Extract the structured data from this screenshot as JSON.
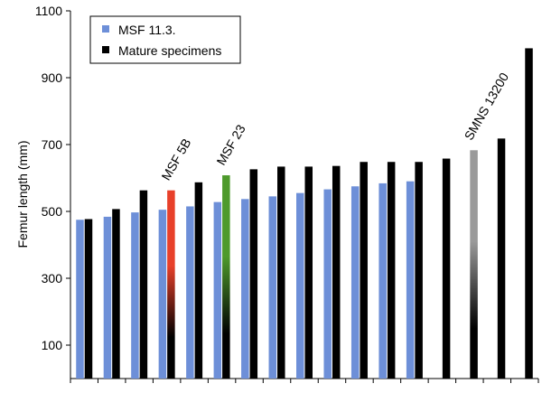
{
  "chart_data": {
    "type": "bar",
    "ylabel": "Femur length (mm)",
    "ylim": [
      0,
      1100
    ],
    "yticks": [
      100,
      300,
      500,
      700,
      900,
      1100
    ],
    "grid": false,
    "legend_position": "top-left",
    "legend": [
      {
        "label": "MSF 11.3.",
        "color": "#6d8fd8"
      },
      {
        "label": "Mature specimens",
        "color": "#000000"
      }
    ],
    "colors": {
      "msf": "#6d8fd8",
      "mature": "#000000",
      "msf5b": "#e8402a",
      "msf23": "#4e9a2c",
      "smns": "#9a9a9a"
    },
    "groups": [
      {
        "blue": 475,
        "dark": 477
      },
      {
        "blue": 484,
        "dark": 507
      },
      {
        "blue": 497,
        "dark": 563
      },
      {
        "blue": 505,
        "dark": 563,
        "dark_style": "msf5b"
      },
      {
        "blue": 515,
        "dark": 587
      },
      {
        "blue": 528,
        "dark": 608,
        "dark_style": "msf23"
      },
      {
        "blue": 537,
        "dark": 626
      },
      {
        "blue": 545,
        "dark": 634
      },
      {
        "blue": 555,
        "dark": 634
      },
      {
        "blue": 566,
        "dark": 636
      },
      {
        "blue": 575,
        "dark": 648
      },
      {
        "blue": 584,
        "dark": 648
      },
      {
        "blue": 590,
        "dark": 648
      },
      {
        "blue": null,
        "dark": 658
      },
      {
        "blue": null,
        "dark": 683,
        "dark_style": "smns"
      },
      {
        "blue": null,
        "dark": 718
      },
      {
        "blue": null,
        "dark": 988
      }
    ],
    "annotations": [
      {
        "text": "MSF 5B",
        "group": 3
      },
      {
        "text": "MSF 23",
        "group": 5
      },
      {
        "text": "SMNS 13200",
        "group": 14
      }
    ]
  }
}
